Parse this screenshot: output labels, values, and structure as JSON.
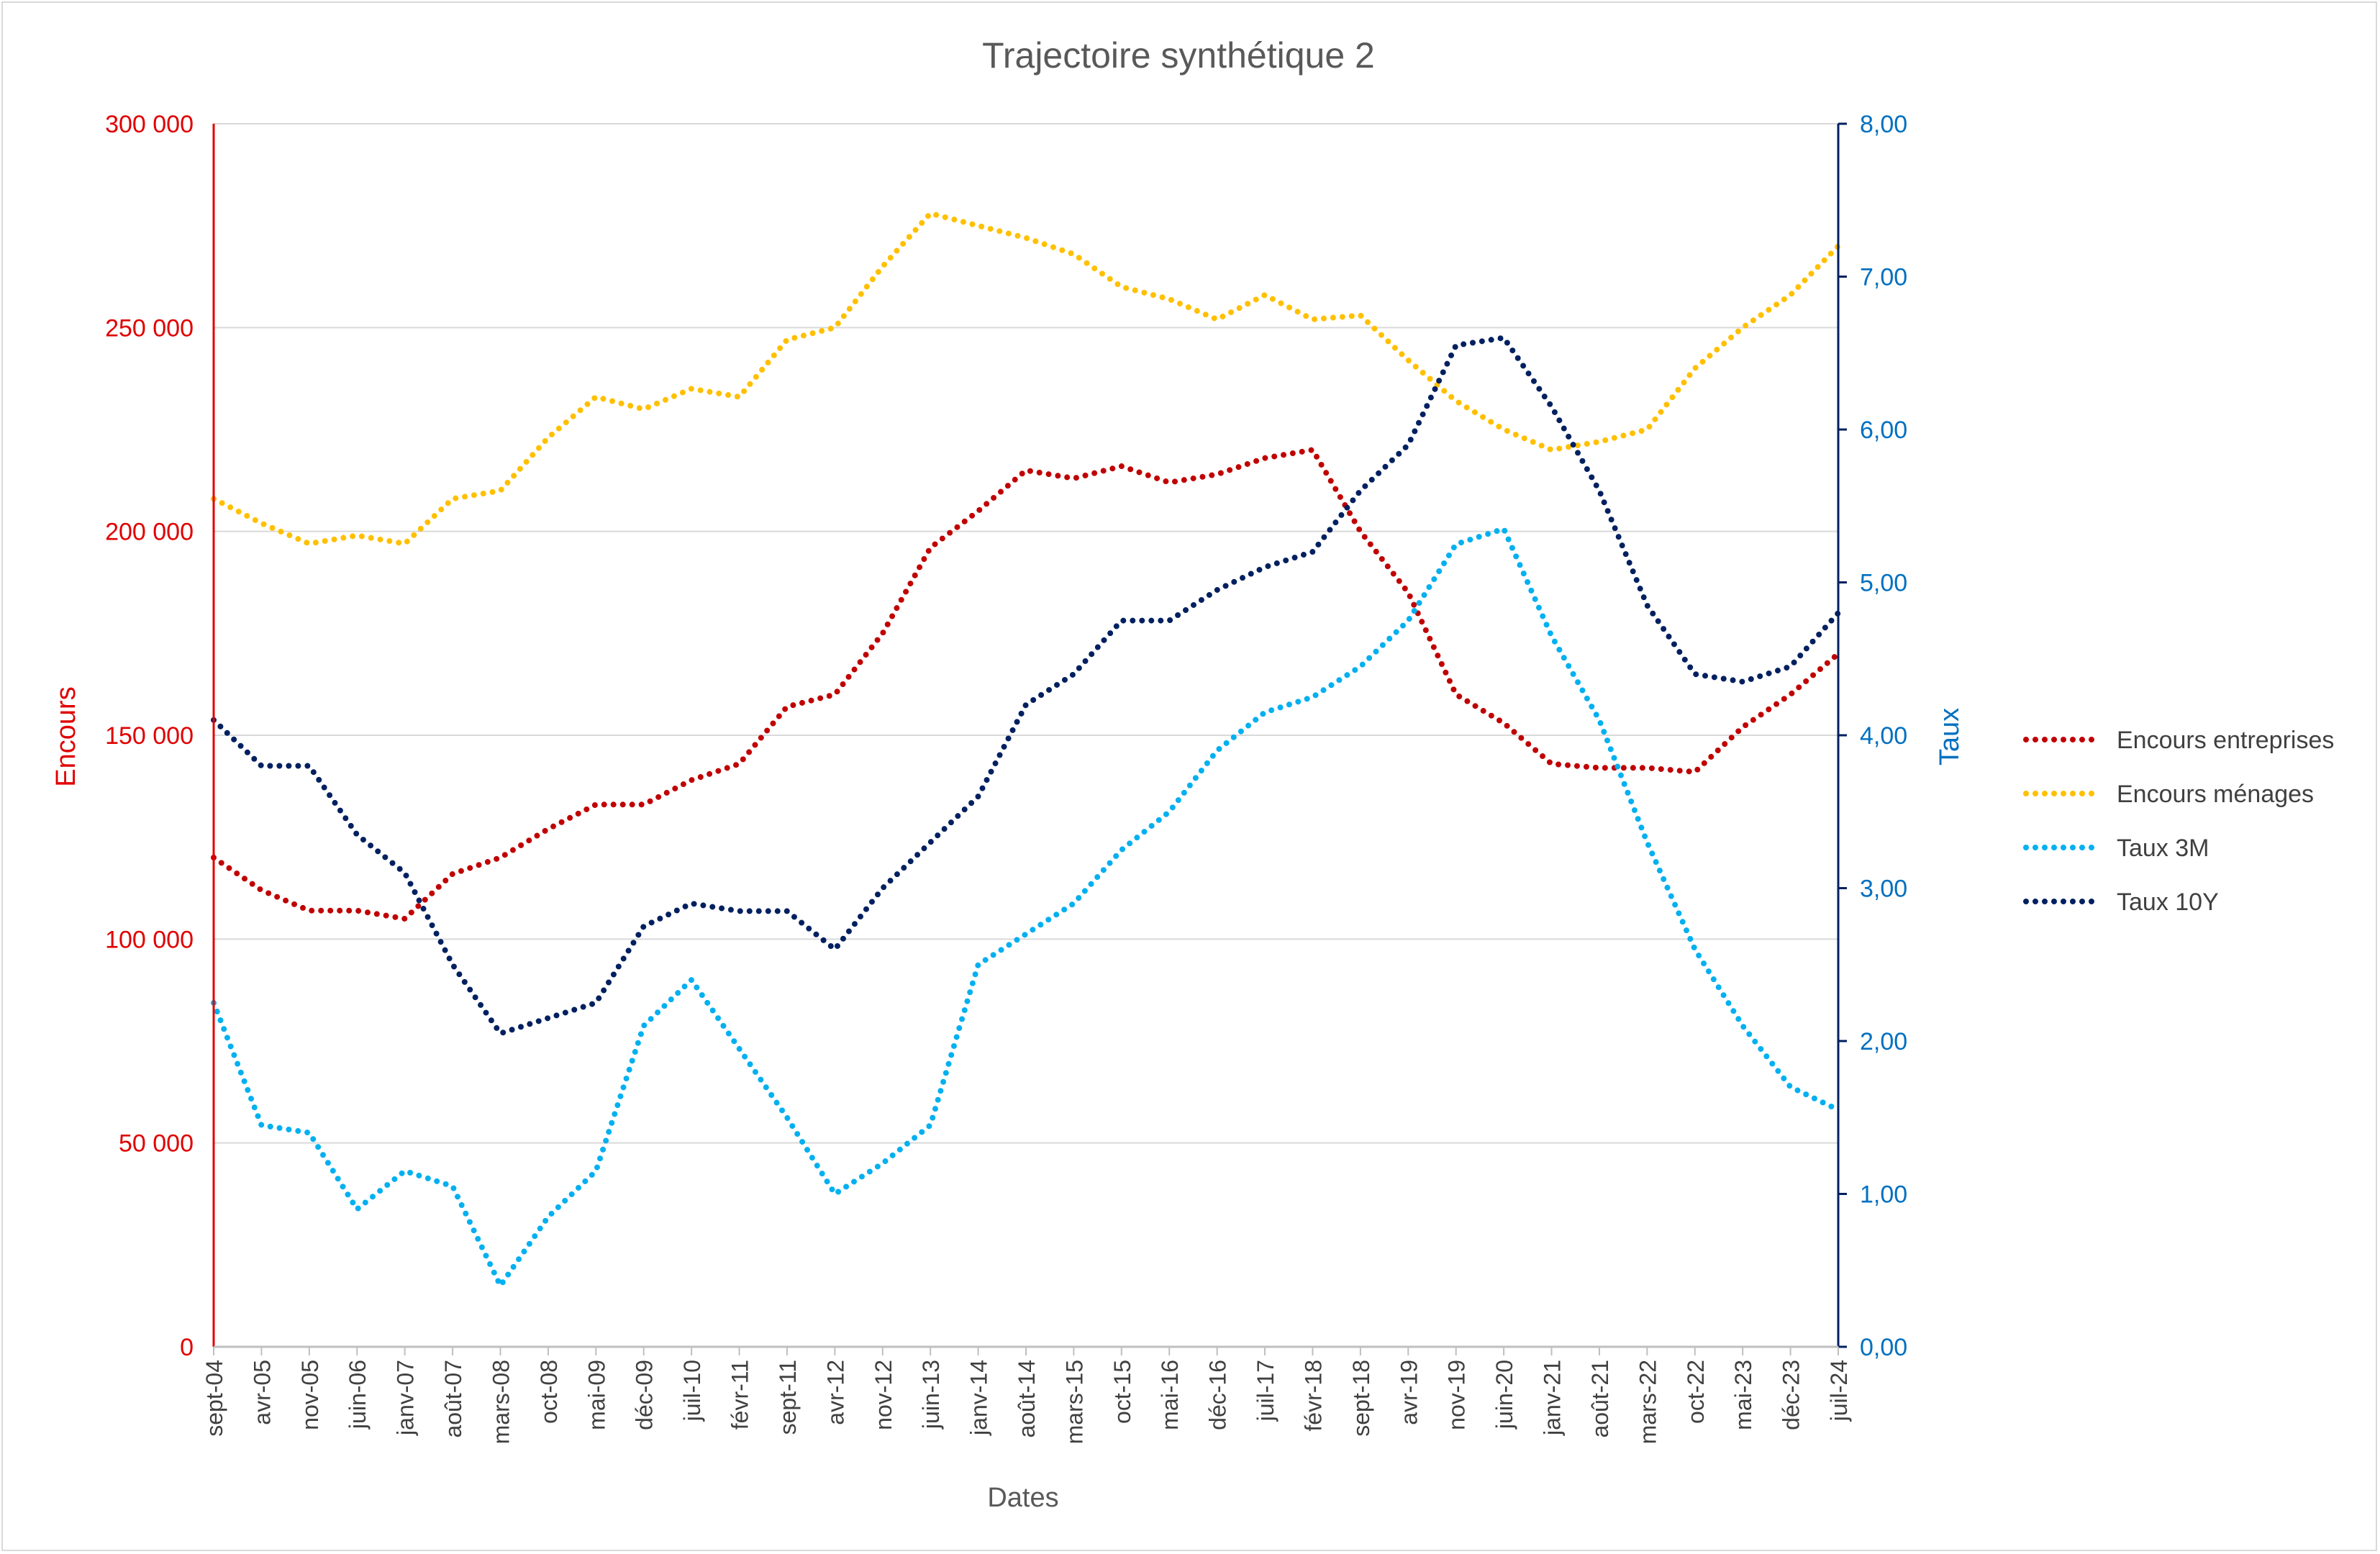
{
  "chart_data": {
    "type": "line",
    "title": "Trajectoire synthétique 2",
    "xlabel": "Dates",
    "ylabel_left": "Encours",
    "ylabel_right": "Taux",
    "ylim_left": [
      0,
      300000
    ],
    "ylim_right": [
      0,
      8
    ],
    "yticks_left": [
      "0",
      "50 000",
      "100 000",
      "150 000",
      "200 000",
      "250 000",
      "300 000"
    ],
    "yticks_right": [
      "0,00",
      "1,00",
      "2,00",
      "3,00",
      "4,00",
      "5,00",
      "6,00",
      "7,00",
      "8,00"
    ],
    "x_tick_labels": [
      "sept-04",
      "avr-05",
      "nov-05",
      "juin-06",
      "janv-07",
      "août-07",
      "mars-08",
      "oct-08",
      "mai-09",
      "déc-09",
      "juil-10",
      "févr-11",
      "sept-11",
      "avr-12",
      "nov-12",
      "juin-13",
      "janv-14",
      "août-14",
      "mars-15",
      "oct-15",
      "mai-16",
      "déc-16",
      "juil-17",
      "févr-18",
      "sept-18",
      "avr-19",
      "nov-19",
      "juin-20",
      "janv-21",
      "août-21",
      "mars-22",
      "oct-22",
      "mai-23",
      "déc-23",
      "juil-24"
    ],
    "x_start": "sept-04",
    "x_end": "juil-24",
    "grid": "horizontal",
    "legend_position": "right",
    "line_style": "dotted",
    "series": [
      {
        "name": "Encours entreprises",
        "axis": "left",
        "color": "#c00000",
        "x": [
          "sept-04",
          "avr-05",
          "nov-05",
          "juin-06",
          "janv-07",
          "août-07",
          "mars-08",
          "oct-08",
          "mai-09",
          "déc-09",
          "juil-10",
          "févr-11",
          "sept-11",
          "avr-12",
          "nov-12",
          "juin-13",
          "janv-14",
          "août-14",
          "mars-15",
          "oct-15",
          "mai-16",
          "déc-16",
          "juil-17",
          "févr-18",
          "sept-18",
          "avr-19",
          "nov-19",
          "juin-20",
          "janv-21",
          "août-21",
          "mars-22",
          "oct-22",
          "mai-23",
          "déc-23",
          "juil-24"
        ],
        "values": [
          120000,
          112000,
          107000,
          107000,
          105000,
          116000,
          120000,
          127000,
          133000,
          133000,
          139000,
          143000,
          157000,
          160000,
          175000,
          196000,
          205000,
          215000,
          213000,
          216000,
          212000,
          214000,
          218000,
          220000,
          200000,
          185000,
          160000,
          153000,
          143000,
          142000,
          142000,
          141000,
          152000,
          160000,
          170000
        ]
      },
      {
        "name": "Encours ménages",
        "axis": "left",
        "color": "#ffc000",
        "x": [
          "sept-04",
          "avr-05",
          "nov-05",
          "juin-06",
          "janv-07",
          "août-07",
          "mars-08",
          "oct-08",
          "mai-09",
          "déc-09",
          "juil-10",
          "févr-11",
          "sept-11",
          "avr-12",
          "nov-12",
          "juin-13",
          "janv-14",
          "août-14",
          "mars-15",
          "oct-15",
          "mai-16",
          "déc-16",
          "juil-17",
          "févr-18",
          "sept-18",
          "avr-19",
          "nov-19",
          "juin-20",
          "janv-21",
          "août-21",
          "mars-22",
          "oct-22",
          "mai-23",
          "déc-23",
          "juil-24"
        ],
        "values": [
          208000,
          202000,
          197000,
          199000,
          197000,
          208000,
          210000,
          223000,
          233000,
          230000,
          235000,
          233000,
          247000,
          250000,
          265000,
          278000,
          275000,
          272000,
          268000,
          260000,
          257000,
          252000,
          258000,
          252000,
          253000,
          242000,
          232000,
          225000,
          220000,
          222000,
          225000,
          240000,
          250000,
          258000,
          270000
        ]
      },
      {
        "name": "Taux 3M",
        "axis": "right",
        "color": "#00b0f0",
        "x": [
          "sept-04",
          "avr-05",
          "nov-05",
          "juin-06",
          "janv-07",
          "août-07",
          "mars-08",
          "oct-08",
          "mai-09",
          "déc-09",
          "juil-10",
          "févr-11",
          "sept-11",
          "avr-12",
          "nov-12",
          "juin-13",
          "janv-14",
          "août-14",
          "mars-15",
          "oct-15",
          "mai-16",
          "déc-16",
          "juil-17",
          "févr-18",
          "sept-18",
          "avr-19",
          "nov-19",
          "juin-20",
          "janv-21",
          "août-21",
          "mars-22",
          "oct-22",
          "mai-23",
          "déc-23",
          "juil-24"
        ],
        "values": [
          2.25,
          1.45,
          1.4,
          0.9,
          1.15,
          1.05,
          0.4,
          0.85,
          1.15,
          2.1,
          2.4,
          1.95,
          1.5,
          1.0,
          1.2,
          1.45,
          2.5,
          2.7,
          2.9,
          3.25,
          3.5,
          3.9,
          4.15,
          4.25,
          4.45,
          4.75,
          5.25,
          5.35,
          4.65,
          4.1,
          3.3,
          2.6,
          2.1,
          1.7,
          1.55
        ]
      },
      {
        "name": "Taux 10Y",
        "axis": "right",
        "color": "#002060",
        "x": [
          "sept-04",
          "avr-05",
          "nov-05",
          "juin-06",
          "janv-07",
          "août-07",
          "mars-08",
          "oct-08",
          "mai-09",
          "déc-09",
          "juil-10",
          "févr-11",
          "sept-11",
          "avr-12",
          "nov-12",
          "juin-13",
          "janv-14",
          "août-14",
          "mars-15",
          "oct-15",
          "mai-16",
          "déc-16",
          "juil-17",
          "févr-18",
          "sept-18",
          "avr-19",
          "nov-19",
          "juin-20",
          "janv-21",
          "août-21",
          "mars-22",
          "oct-22",
          "mai-23",
          "déc-23",
          "juil-24"
        ],
        "values": [
          4.1,
          3.8,
          3.8,
          3.35,
          3.1,
          2.5,
          2.05,
          2.15,
          2.25,
          2.75,
          2.9,
          2.85,
          2.85,
          2.6,
          3.0,
          3.3,
          3.6,
          4.2,
          4.4,
          4.75,
          4.75,
          4.95,
          5.1,
          5.2,
          5.6,
          5.9,
          6.55,
          6.6,
          6.15,
          5.6,
          4.85,
          4.4,
          4.35,
          4.45,
          4.8
        ]
      }
    ]
  }
}
